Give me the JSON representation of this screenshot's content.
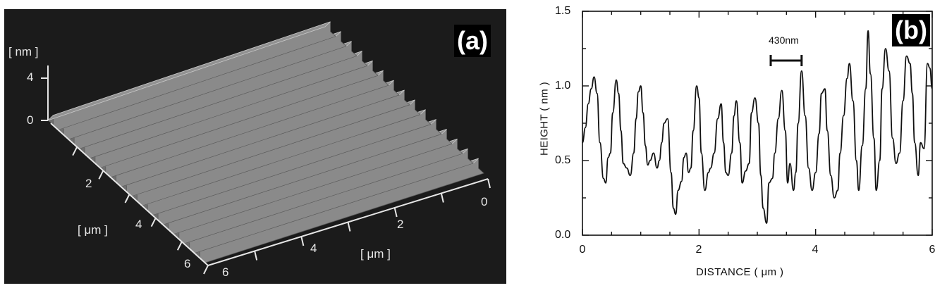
{
  "panel_a": {
    "label": "(a)",
    "z_unit": "[ nm ]",
    "z_ticks": [
      "4",
      "0"
    ],
    "left_axis_ticks": [
      "2",
      "4",
      "6"
    ],
    "right_axis_ticks": [
      "0",
      "2",
      "4",
      "6"
    ],
    "left_axis_unit": "[ μm ]",
    "right_axis_unit": "[ μm ]",
    "ridge_count": 15
  },
  "panel_b": {
    "label": "(b)",
    "annotation": "430nm"
  },
  "chart_data": {
    "type": "line",
    "title": "",
    "xlabel": "DISTANCE ( μm )",
    "ylabel": "HEIGHT ( nm )",
    "xlim": [
      0,
      6
    ],
    "ylim": [
      0,
      1.5
    ],
    "xticks": [
      "0",
      "2",
      "4",
      "6"
    ],
    "yticks": [
      "0.0",
      "0.5",
      "1.0",
      "1.5"
    ],
    "grid": false,
    "series": [
      {
        "x": [
          0.0,
          0.05,
          0.1,
          0.15,
          0.2,
          0.25,
          0.3,
          0.36,
          0.4,
          0.44,
          0.48,
          0.52,
          0.58,
          0.62,
          0.66,
          0.7,
          0.76,
          0.82,
          0.88,
          0.92,
          0.96,
          1.0,
          1.04,
          1.08,
          1.12,
          1.16,
          1.22,
          1.28,
          1.32,
          1.36,
          1.4,
          1.46,
          1.52,
          1.56,
          1.6,
          1.64,
          1.7,
          1.74,
          1.78,
          1.82,
          1.86,
          1.9,
          1.96,
          2.0,
          2.04,
          2.1,
          2.16,
          2.2,
          2.26,
          2.32,
          2.38,
          2.42,
          2.46,
          2.5,
          2.56,
          2.6,
          2.64,
          2.7,
          2.74,
          2.8,
          2.86,
          2.9,
          2.96,
          3.02,
          3.06,
          3.1,
          3.16,
          3.2,
          3.26,
          3.3,
          3.36,
          3.42,
          3.48,
          3.52,
          3.56,
          3.62,
          3.66,
          3.7,
          3.76,
          3.82,
          3.88,
          3.94,
          4.0,
          4.06,
          4.1,
          4.16,
          4.2,
          4.26,
          4.32,
          4.38,
          4.42,
          4.48,
          4.54,
          4.58,
          4.64,
          4.7,
          4.74,
          4.8,
          4.86,
          4.9,
          4.94,
          5.0,
          5.04,
          5.1,
          5.14,
          5.2,
          5.26,
          5.32,
          5.38,
          5.44,
          5.5,
          5.56,
          5.62,
          5.66,
          5.7,
          5.76,
          5.8,
          5.86,
          5.92,
          5.96,
          6.0
        ],
        "y": [
          0.62,
          0.72,
          0.88,
          0.98,
          1.06,
          0.95,
          0.62,
          0.38,
          0.35,
          0.52,
          0.55,
          0.82,
          1.04,
          0.95,
          0.7,
          0.48,
          0.45,
          0.4,
          0.55,
          0.78,
          0.96,
          1.0,
          0.82,
          0.6,
          0.47,
          0.5,
          0.55,
          0.45,
          0.5,
          0.62,
          0.75,
          0.78,
          0.42,
          0.18,
          0.14,
          0.3,
          0.36,
          0.52,
          0.55,
          0.42,
          0.45,
          0.7,
          1.0,
          0.92,
          0.55,
          0.3,
          0.42,
          0.45,
          0.55,
          0.78,
          0.88,
          0.62,
          0.42,
          0.4,
          0.55,
          0.8,
          0.9,
          0.62,
          0.35,
          0.43,
          0.48,
          0.82,
          0.92,
          0.75,
          0.4,
          0.18,
          0.08,
          0.35,
          0.38,
          0.55,
          0.78,
          0.97,
          0.7,
          0.35,
          0.48,
          0.3,
          0.42,
          0.75,
          1.1,
          0.8,
          0.45,
          0.3,
          0.42,
          0.68,
          0.95,
          0.98,
          0.7,
          0.4,
          0.25,
          0.3,
          0.55,
          0.8,
          1.05,
          1.15,
          0.9,
          0.5,
          0.3,
          0.6,
          0.98,
          1.37,
          1.08,
          0.65,
          0.3,
          0.5,
          0.98,
          1.25,
          1.1,
          0.65,
          0.48,
          0.55,
          0.9,
          1.2,
          1.15,
          0.95,
          0.62,
          0.4,
          0.62,
          0.58,
          1.15,
          1.12,
          0.98
        ]
      }
    ]
  }
}
